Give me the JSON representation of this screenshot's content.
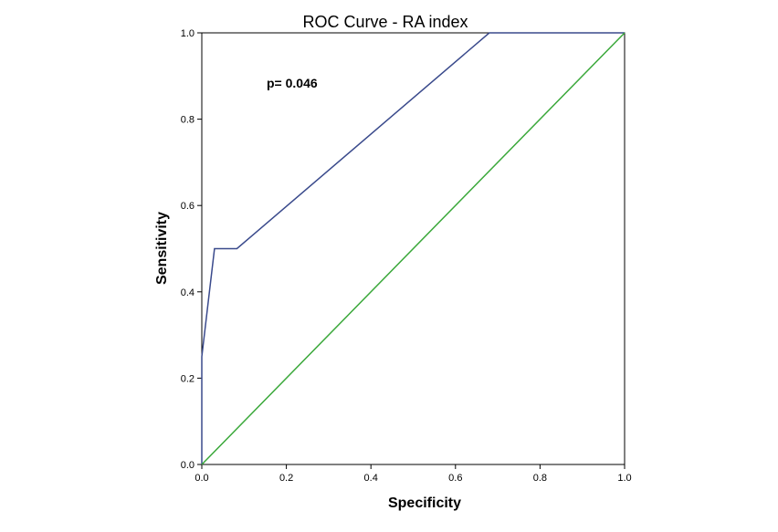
{
  "chart_data": {
    "type": "line",
    "title": "ROC Curve - RA index",
    "xlabel": "Specificity",
    "ylabel": "Sensitivity",
    "xlim": [
      0,
      1
    ],
    "ylim": [
      0,
      1
    ],
    "x_ticks": [
      "0.0",
      "0.2",
      "0.4",
      "0.6",
      "0.8",
      "1.0"
    ],
    "y_ticks": [
      "0.0",
      "0.2",
      "0.4",
      "0.6",
      "0.8",
      "1.0"
    ],
    "grid": false,
    "annotation": "p= 0.046",
    "series": [
      {
        "color": "#3a4a8c",
        "points": [
          [
            0.0,
            0.0
          ],
          [
            0.0,
            0.25
          ],
          [
            0.03,
            0.5
          ],
          [
            0.083,
            0.5
          ],
          [
            0.68,
            1.0
          ],
          [
            1.0,
            1.0
          ]
        ]
      },
      {
        "color": "#3aa83a",
        "points": [
          [
            0.0,
            0.0
          ],
          [
            1.0,
            1.0
          ]
        ]
      }
    ]
  }
}
